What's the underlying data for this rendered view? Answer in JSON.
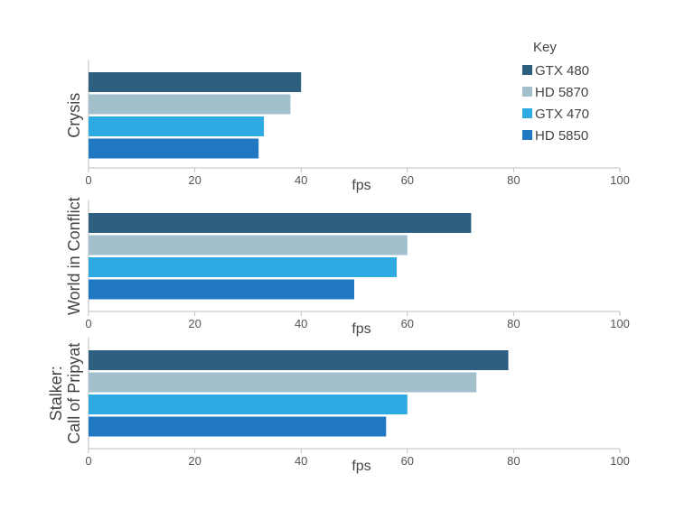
{
  "chart_data": {
    "type": "bar",
    "orientation": "horizontal",
    "xlim": [
      0,
      100
    ],
    "xticks": [
      0,
      20,
      40,
      60,
      80,
      100
    ],
    "xlabel": "fps",
    "legend": {
      "title": "Key",
      "placement": "top-right",
      "entries": [
        "GTX 480",
        "HD 5870",
        "GTX 470",
        "HD 5850"
      ]
    },
    "colors": {
      "GTX 480": "#2f5f80",
      "HD 5870": "#a2c0cb",
      "GTX 470": "#2eaae3",
      "HD 5850": "#1f78c1",
      "axis": "#bfbfbf",
      "text": "#555555",
      "grid": "none"
    },
    "grid": false,
    "panels": [
      {
        "title_lines": [
          "Crysis"
        ],
        "series": [
          {
            "name": "GTX 480",
            "value": 40
          },
          {
            "name": "HD 5870",
            "value": 38
          },
          {
            "name": "GTX 470",
            "value": 33
          },
          {
            "name": "HD 5850",
            "value": 32
          }
        ]
      },
      {
        "title_lines": [
          "World in Conflict"
        ],
        "series": [
          {
            "name": "GTX 480",
            "value": 72
          },
          {
            "name": "HD 5870",
            "value": 60
          },
          {
            "name": "GTX 470",
            "value": 58
          },
          {
            "name": "HD 5850",
            "value": 50
          }
        ]
      },
      {
        "title_lines": [
          "Stalker:",
          "Call of Pripyat"
        ],
        "series": [
          {
            "name": "GTX 480",
            "value": 79
          },
          {
            "name": "HD 5870",
            "value": 73
          },
          {
            "name": "GTX 470",
            "value": 60
          },
          {
            "name": "HD 5850",
            "value": 56
          }
        ]
      }
    ]
  }
}
